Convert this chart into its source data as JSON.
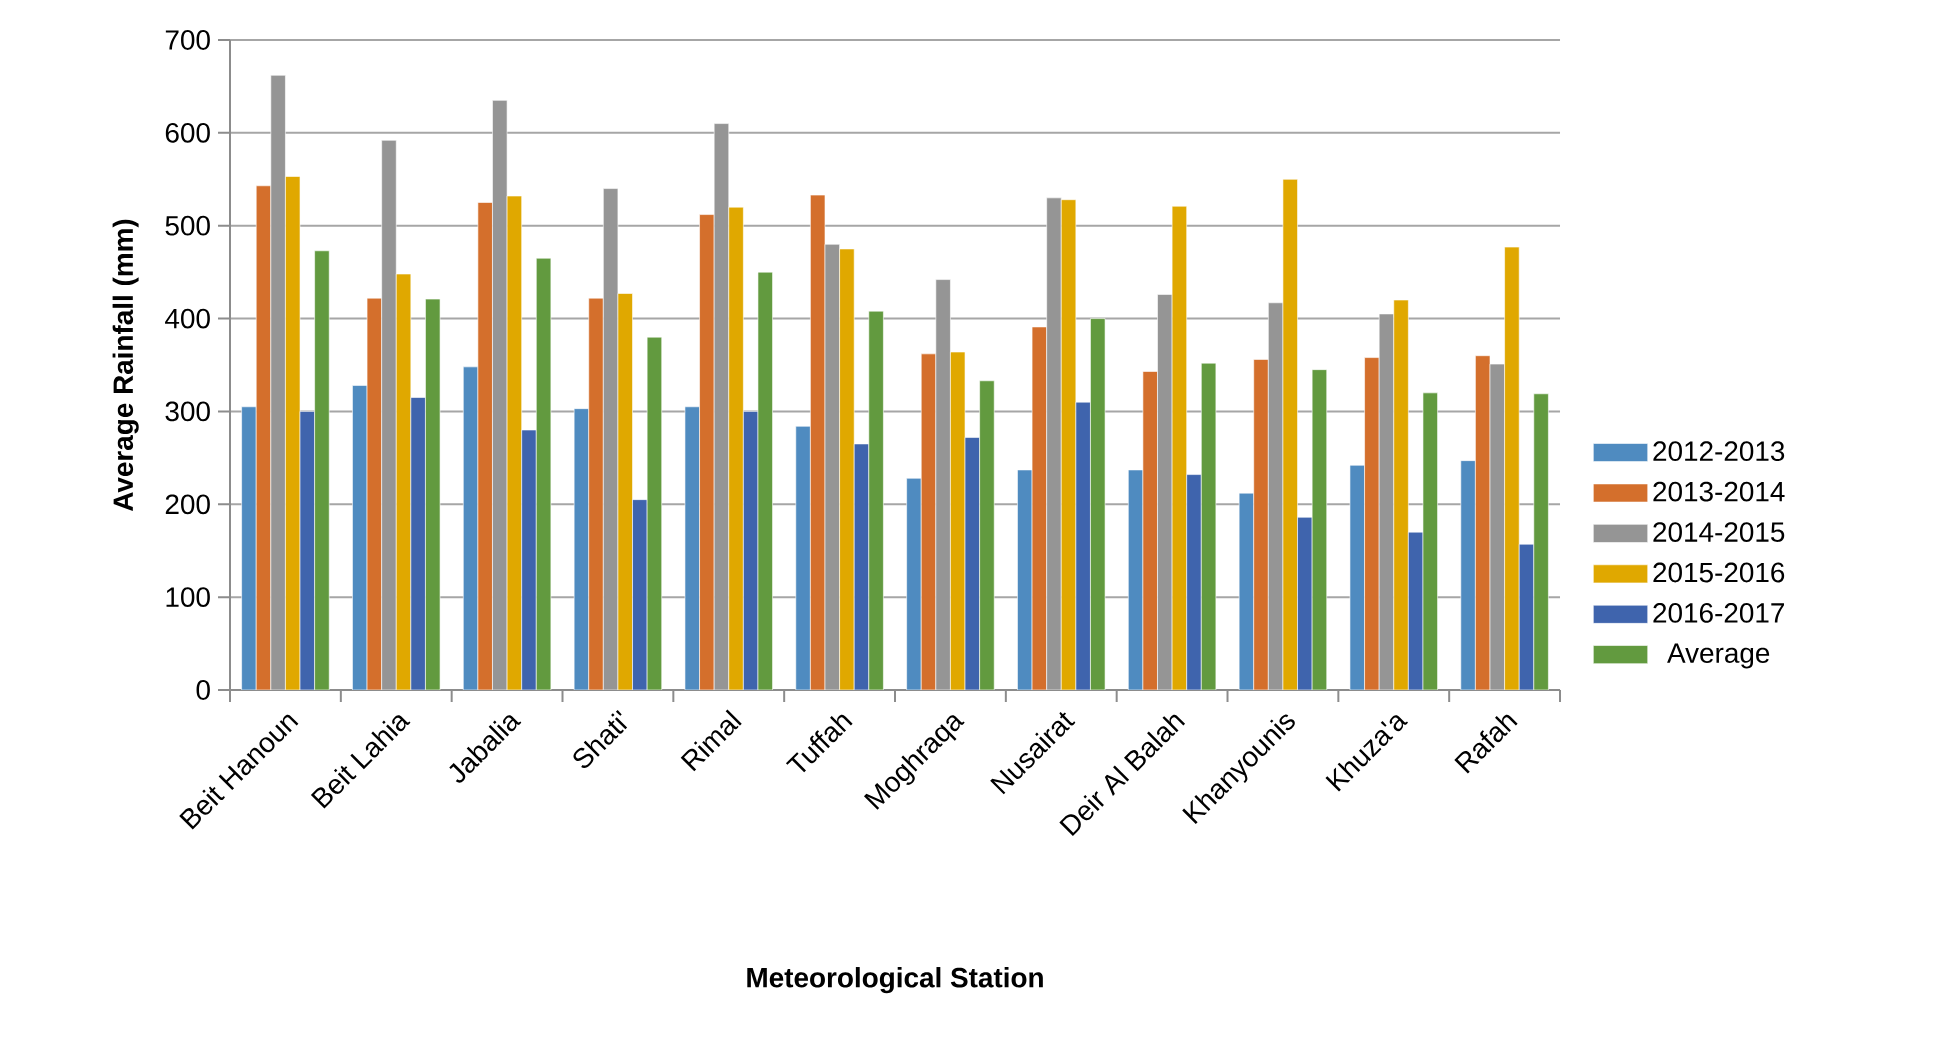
{
  "chart_data": {
    "type": "bar",
    "xlabel": "Meteorological Station",
    "ylabel": "Average Rainfall (mm)",
    "categories": [
      "Beit Hanoun",
      "Beit Lahia",
      "Jabalia",
      "Shati'",
      "Rimal",
      "Tuffah",
      "Moghraqa",
      "Nusairat",
      "Deir Al Balah",
      "Khanyounis",
      "Khuza'a",
      "Rafah"
    ],
    "series": [
      {
        "name": "2012-2013",
        "color": "#4f8bc0",
        "values": [
          305,
          328,
          348,
          303,
          305,
          284,
          228,
          237,
          237,
          212,
          242,
          247
        ]
      },
      {
        "name": "2013-2014",
        "color": "#d46f2c",
        "values": [
          543,
          422,
          525,
          422,
          512,
          533,
          362,
          391,
          343,
          356,
          358,
          360
        ]
      },
      {
        "name": "2014-2015",
        "color": "#959595",
        "values": [
          662,
          592,
          635,
          540,
          610,
          480,
          442,
          530,
          426,
          417,
          405,
          351
        ]
      },
      {
        "name": "2015-2016",
        "color": "#e0a800",
        "values": [
          553,
          448,
          532,
          427,
          520,
          475,
          364,
          528,
          521,
          550,
          420,
          477
        ]
      },
      {
        "name": "2016-2017",
        "color": "#3f64ad",
        "values": [
          300,
          315,
          280,
          205,
          300,
          265,
          272,
          310,
          232,
          186,
          170,
          157
        ]
      },
      {
        "name": "Average",
        "color": "#629a3f",
        "values": [
          473,
          421,
          465,
          380,
          450,
          408,
          333,
          400,
          352,
          345,
          320,
          319
        ]
      }
    ],
    "ylim": [
      0,
      700
    ],
    "yticks": [
      0,
      100,
      200,
      300,
      400,
      500,
      600,
      700
    ],
    "grid": "y",
    "legend": "right"
  }
}
